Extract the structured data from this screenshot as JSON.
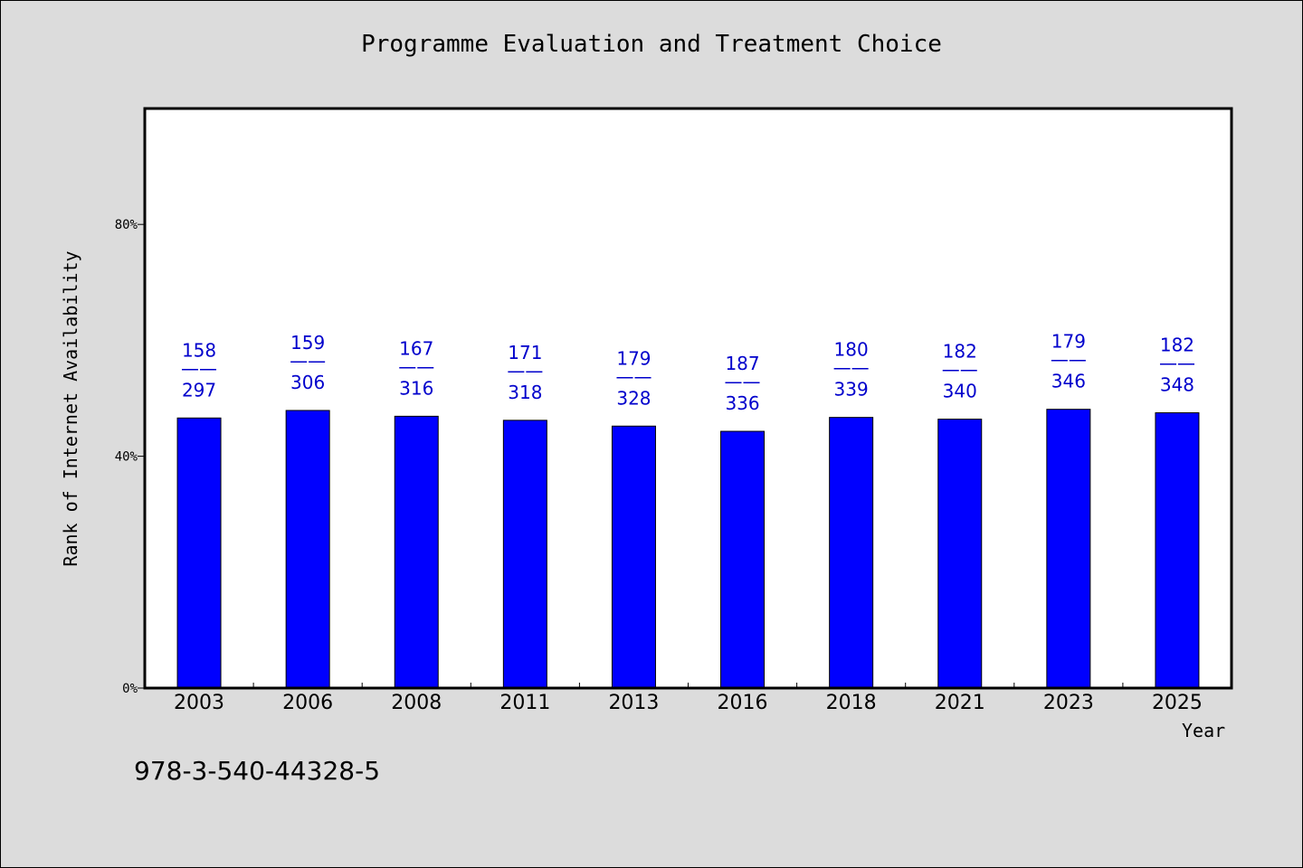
{
  "chart_data": {
    "type": "bar",
    "title": "Programme Evaluation and Treatment Choice",
    "xlabel": "Year",
    "ylabel": "Rank of Internet Availability",
    "categories": [
      "2003",
      "2006",
      "2008",
      "2011",
      "2013",
      "2016",
      "2018",
      "2021",
      "2023",
      "2025"
    ],
    "values": [
      46.6,
      47.9,
      46.9,
      46.2,
      45.2,
      44.3,
      46.7,
      46.4,
      48.1,
      47.5
    ],
    "label_top": [
      "158",
      "159",
      "167",
      "171",
      "179",
      "187",
      "180",
      "182",
      "179",
      "182"
    ],
    "label_sep": "——",
    "label_bottom": [
      "297",
      "306",
      "316",
      "318",
      "328",
      "336",
      "339",
      "340",
      "346",
      "348"
    ],
    "ylim": [
      0,
      100
    ],
    "yticks": [
      0,
      40,
      80
    ],
    "ytick_labels": [
      "0%",
      "40%",
      "80%"
    ],
    "bar_color": "#0000ff",
    "label_color": "#0000cc",
    "grid": false
  },
  "footnote": "978-3-540-44328-5"
}
